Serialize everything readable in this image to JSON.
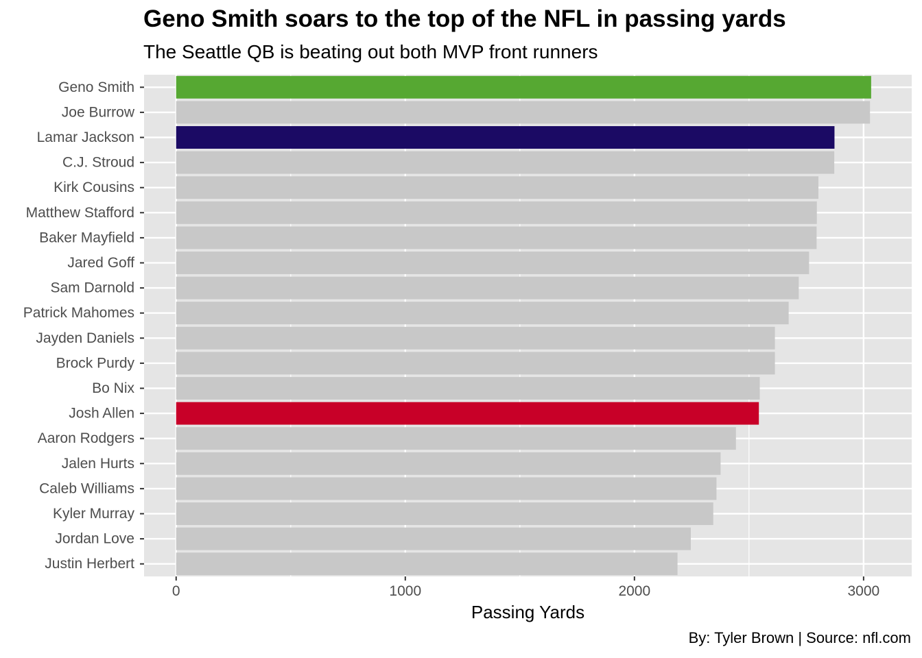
{
  "title": "Geno Smith soars to the top of the NFL in passing yards",
  "subtitle": "The Seattle QB is beating out both MVP front runners",
  "caption": "By: Tyler Brown | Source: nfl.com",
  "colors": {
    "panel": "#e5e5e5",
    "grid": "#ffffff",
    "bar_default": "#c8c8c8",
    "highlight_geno": "#56a832",
    "highlight_lamar": "#1b0a64",
    "highlight_josh": "#c80028",
    "tick_text": "#4d4d4d"
  },
  "chart_data": {
    "type": "bar",
    "orientation": "horizontal",
    "title": "Geno Smith soars to the top of the NFL in passing yards",
    "subtitle": "The Seattle QB is beating out both MVP front runners",
    "xlabel": "Passing Yards",
    "ylabel": "",
    "xlim": [
      -140,
      3210
    ],
    "xticks": [
      0,
      1000,
      2000,
      3000
    ],
    "xtick_labels": [
      "0",
      "1000",
      "2000",
      "3000"
    ],
    "grid": true,
    "legend": "none",
    "categories": [
      "Geno Smith",
      "Joe Burrow",
      "Lamar Jackson",
      "C.J. Stroud",
      "Kirk Cousins",
      "Matthew Stafford",
      "Baker Mayfield",
      "Jared Goff",
      "Sam Darnold",
      "Patrick Mahomes",
      "Jayden Daniels",
      "Brock Purdy",
      "Bo Nix",
      "Josh Allen",
      "Aaron Rodgers",
      "Jalen Hurts",
      "Caleb Williams",
      "Kyler Murray",
      "Jordan Love",
      "Justin Herbert"
    ],
    "values": [
      3033,
      3028,
      2873,
      2872,
      2803,
      2796,
      2795,
      2762,
      2717,
      2673,
      2613,
      2613,
      2547,
      2543,
      2443,
      2376,
      2358,
      2344,
      2246,
      2188
    ],
    "bar_colors": [
      "#56a832",
      "#c8c8c8",
      "#1b0a64",
      "#c8c8c8",
      "#c8c8c8",
      "#c8c8c8",
      "#c8c8c8",
      "#c8c8c8",
      "#c8c8c8",
      "#c8c8c8",
      "#c8c8c8",
      "#c8c8c8",
      "#c8c8c8",
      "#c80028",
      "#c8c8c8",
      "#c8c8c8",
      "#c8c8c8",
      "#c8c8c8",
      "#c8c8c8",
      "#c8c8c8"
    ]
  }
}
